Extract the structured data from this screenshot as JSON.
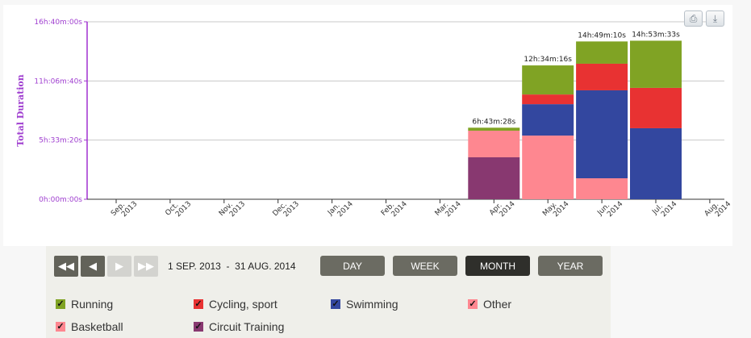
{
  "chart_data": {
    "type": "bar",
    "stacked": true,
    "ylabel": "Total Duration",
    "yticks": [
      "0h:00m:00s",
      "5h:33m:20s",
      "11h:06m:40s",
      "16h:40m:00s"
    ],
    "ylim_hours": [
      0,
      16.667
    ],
    "categories": [
      [
        "Sep.",
        "2013"
      ],
      [
        "Oct.",
        "2013"
      ],
      [
        "Nov.",
        "2013"
      ],
      [
        "Dec.",
        "2013"
      ],
      [
        "Jan.",
        "2014"
      ],
      [
        "Feb.",
        "2014"
      ],
      [
        "Mar.",
        "2014"
      ],
      [
        "Apr.",
        "2014"
      ],
      [
        "May.",
        "2014"
      ],
      [
        "Jun.",
        "2014"
      ],
      [
        "Jul.",
        "2014"
      ],
      [
        "Aug.",
        "2014"
      ]
    ],
    "totals": [
      "",
      "",
      "",
      "",
      "",
      "",
      "",
      "6h:43m:28s",
      "12h:34m:16s",
      "14h:49m:10s",
      "14h:53m:33s",
      ""
    ],
    "series": [
      {
        "name": "Circuit Training",
        "color": "#883870",
        "values": [
          0,
          0,
          0,
          0,
          0,
          0,
          0,
          3.94,
          0,
          0,
          0,
          0
        ]
      },
      {
        "name": "Other",
        "color": "#fe8790",
        "values": [
          0,
          0,
          0,
          0,
          0,
          0,
          0,
          2.5,
          5.98,
          1.97,
          0,
          0
        ]
      },
      {
        "name": "Swimming",
        "color": "#33479f",
        "values": [
          0,
          0,
          0,
          0,
          0,
          0,
          0,
          0,
          2.95,
          8.26,
          6.67,
          0
        ]
      },
      {
        "name": "Cycling, sport",
        "color": "#e83232",
        "values": [
          0,
          0,
          0,
          0,
          0,
          0,
          0,
          0,
          0.91,
          2.5,
          3.79,
          0
        ]
      },
      {
        "name": "Running",
        "color": "#80a324",
        "values": [
          0,
          0,
          0,
          0,
          0,
          0,
          0,
          0.28,
          2.73,
          2.09,
          4.43,
          0
        ]
      }
    ]
  },
  "toolbar": {
    "print": "⎙",
    "download": "⤓"
  },
  "controls": {
    "range": "1 SEP. 2013  -  31 AUG. 2014",
    "periods": [
      "DAY",
      "WEEK",
      "MONTH",
      "YEAR"
    ],
    "active": "MONTH"
  },
  "legend": [
    {
      "label": "Running",
      "color": "#80a324"
    },
    {
      "label": "Cycling, sport",
      "color": "#e83232"
    },
    {
      "label": "Swimming",
      "color": "#33479f"
    },
    {
      "label": "Other",
      "color": "#fe8790"
    },
    {
      "label": "Basketball",
      "color": "#fe8790"
    },
    {
      "label": "Circuit Training",
      "color": "#883870"
    }
  ]
}
